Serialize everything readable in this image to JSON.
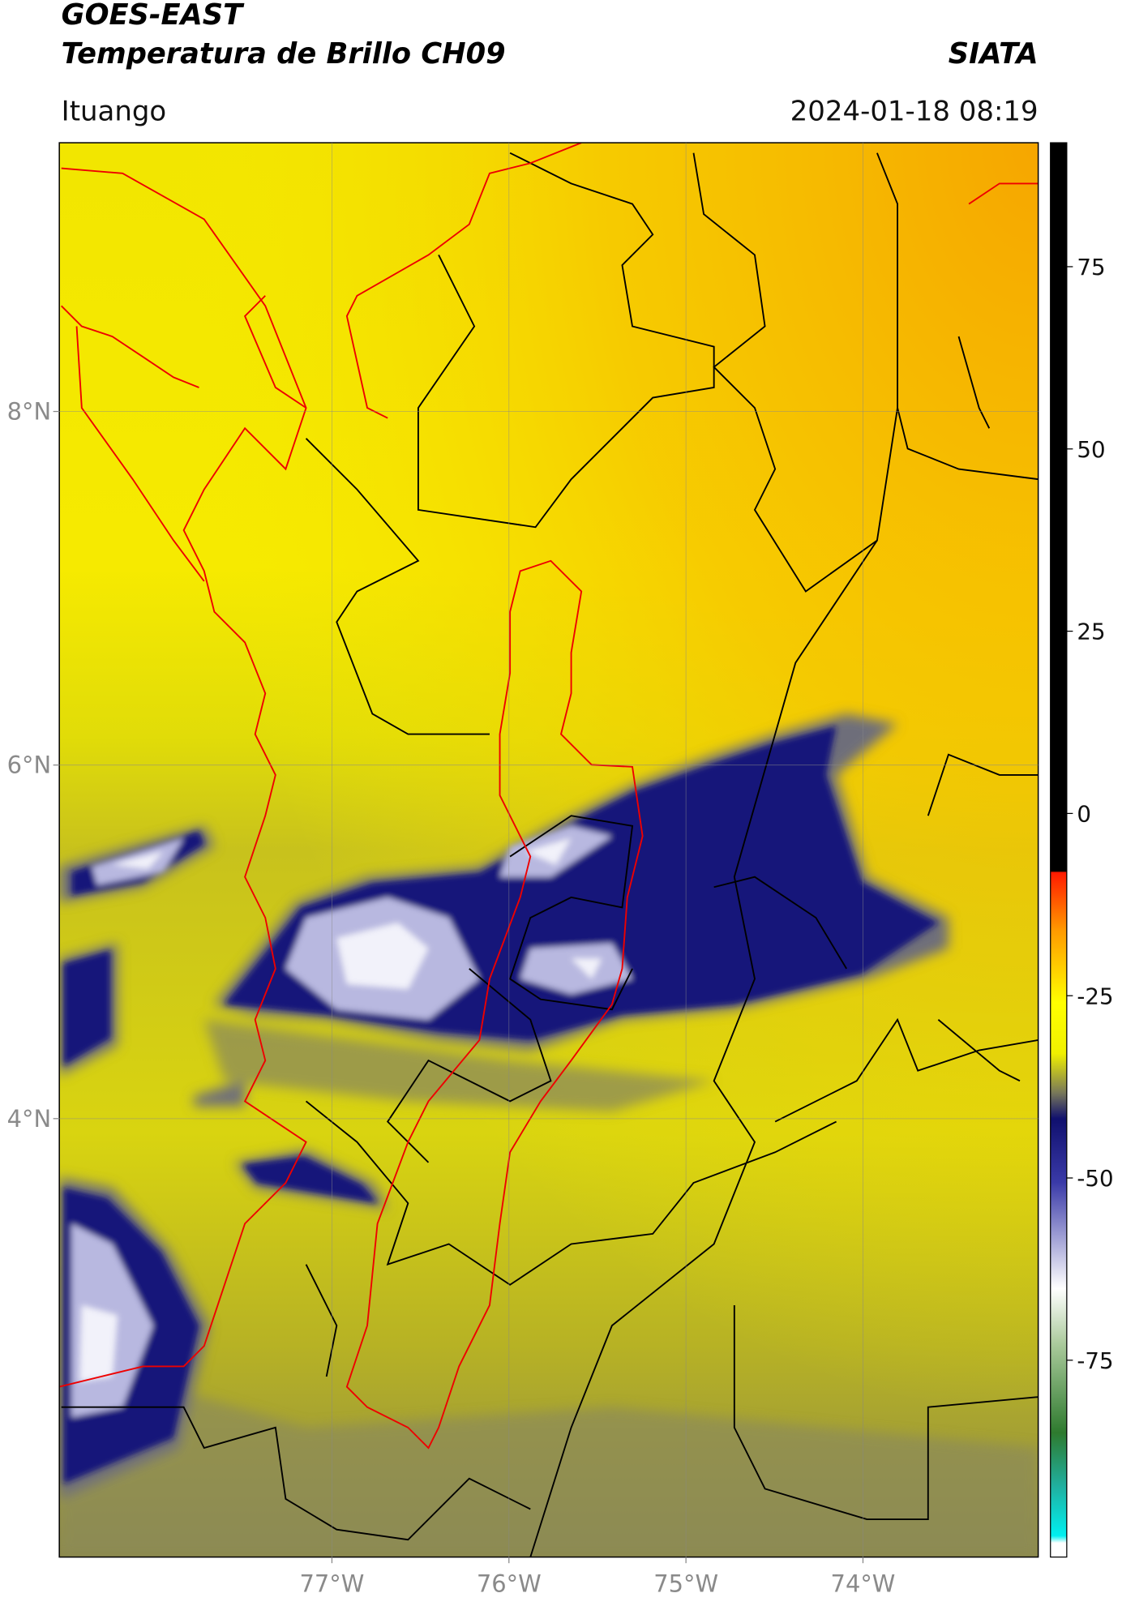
{
  "header": {
    "title": "GOES-EAST",
    "subtitle": "Temperatura de Brillo CH09",
    "brand": "SIATA",
    "location": "Ituango",
    "datetime": "2024-01-18 08:19"
  },
  "map": {
    "xlim": [
      -78.54,
      -73.01
    ],
    "ylim": [
      1.52,
      9.52
    ],
    "xticks": [
      {
        "value": -77,
        "label": "77°W"
      },
      {
        "value": -76,
        "label": "76°W"
      },
      {
        "value": -75,
        "label": "75°W"
      },
      {
        "value": -74,
        "label": "74°W"
      }
    ],
    "yticks": [
      {
        "value": 8,
        "label": "8°N"
      },
      {
        "value": 6,
        "label": "6°N"
      },
      {
        "value": 4,
        "label": "4°N"
      }
    ],
    "grid": true
  },
  "colorbar": {
    "lim": [
      -102,
      92
    ],
    "ticks": [
      75,
      50,
      25,
      0,
      -25,
      -50,
      -75
    ]
  }
}
